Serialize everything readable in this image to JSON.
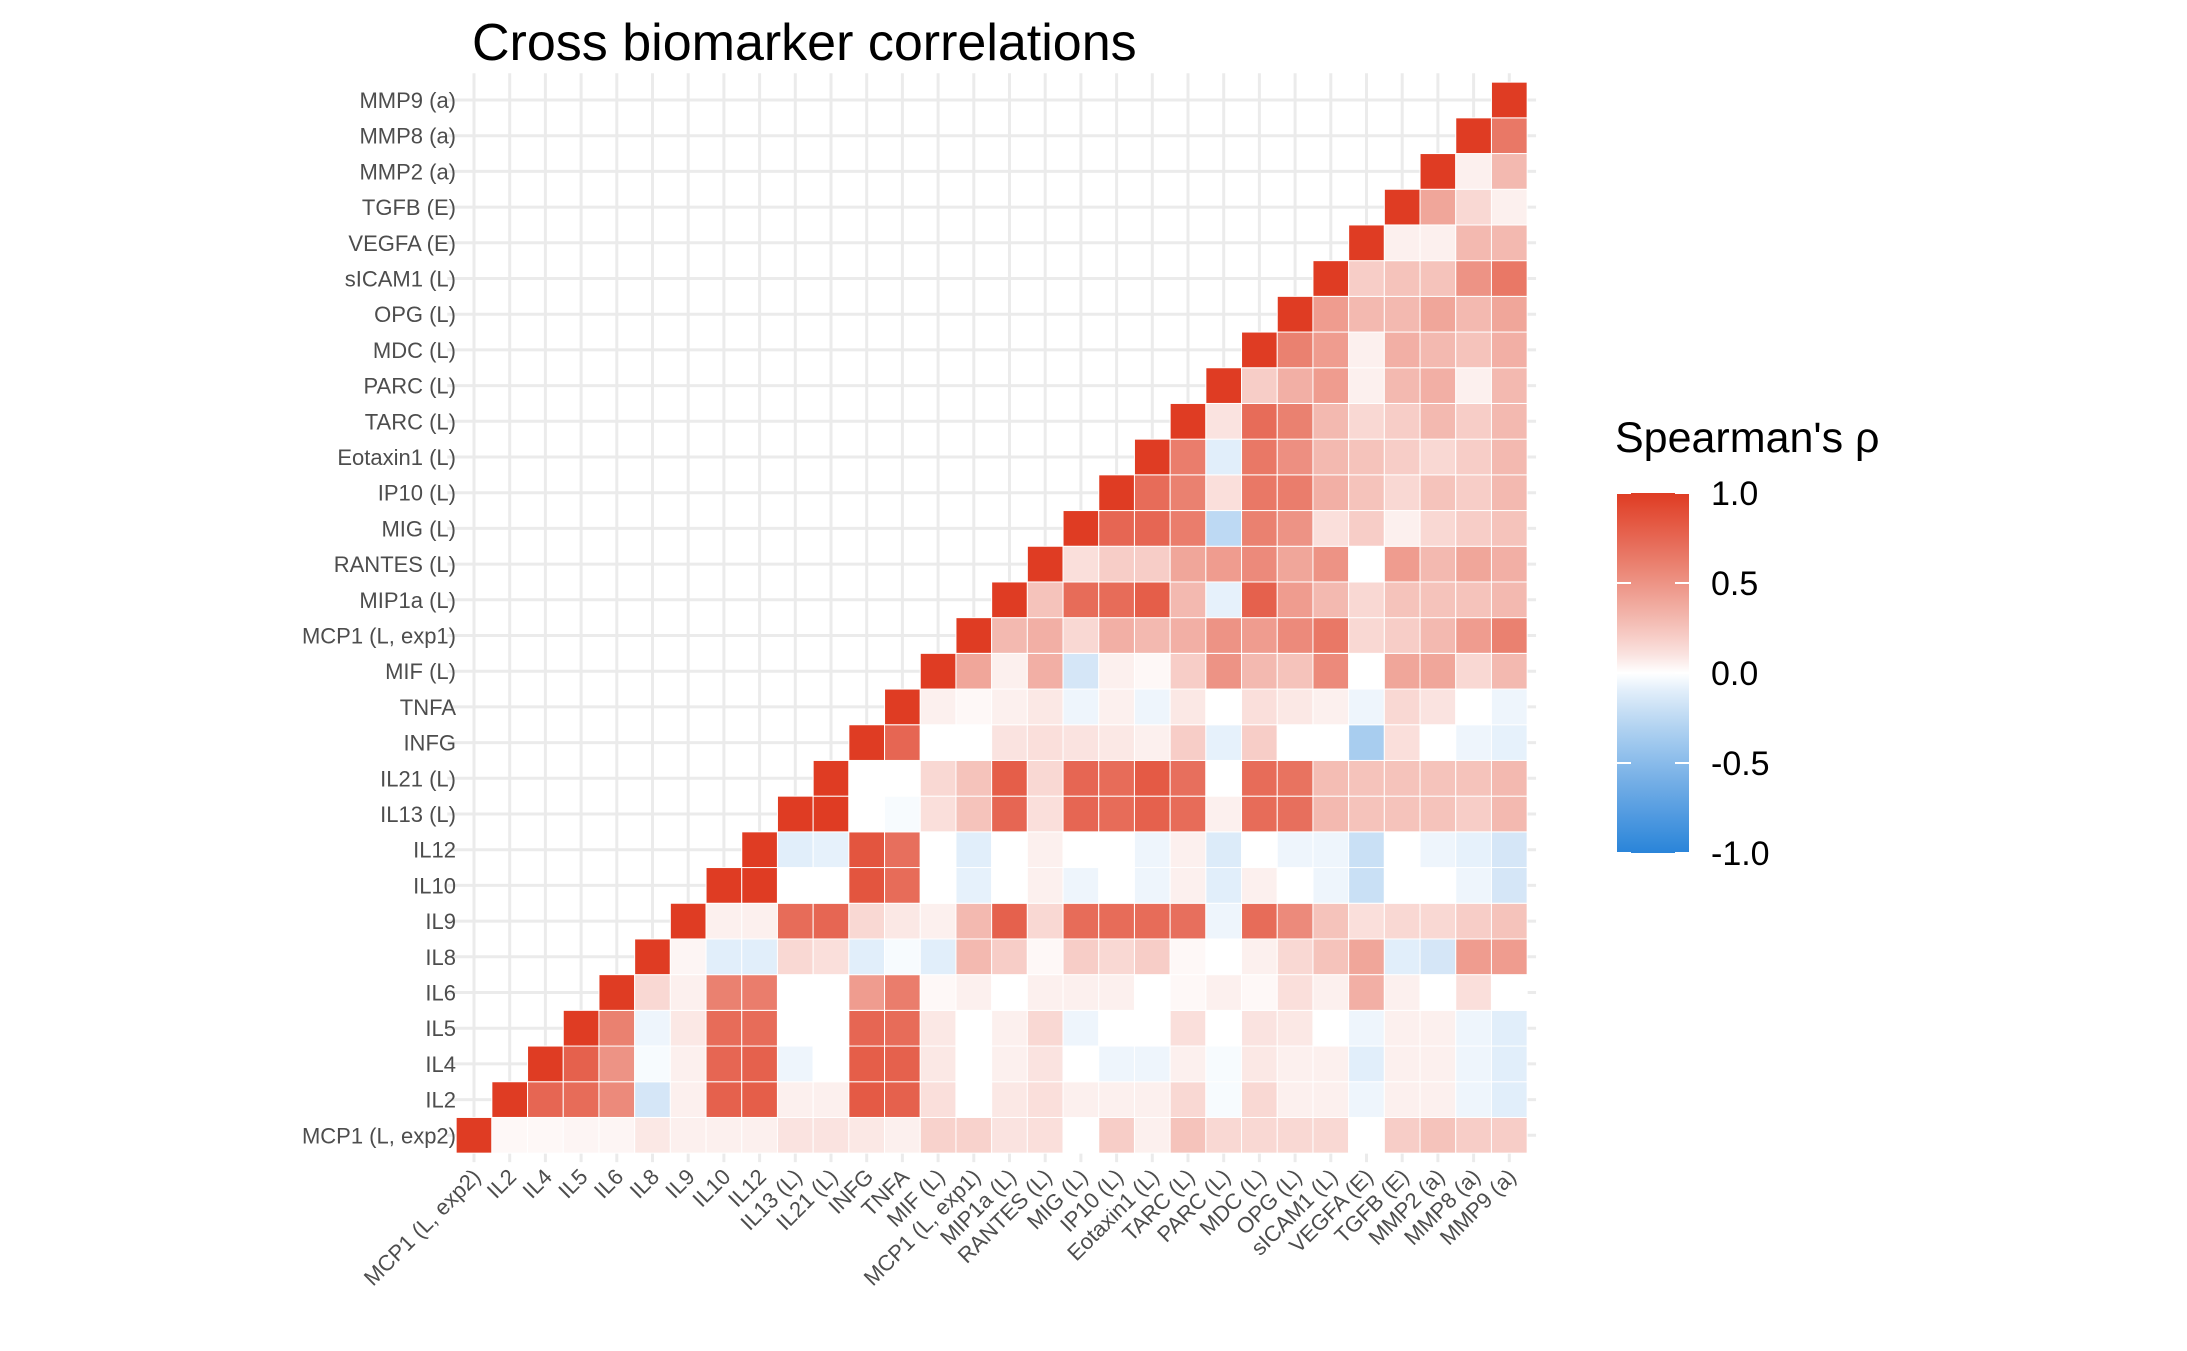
{
  "chart_data": {
    "type": "heatmap",
    "title": "Cross biomarker correlations",
    "variables": [
      "MCP1 (L, exp2)",
      "IL2",
      "IL4",
      "IL5",
      "IL6",
      "IL8",
      "IL9",
      "IL10",
      "IL12",
      "IL13 (L)",
      "IL21 (L)",
      "INFG",
      "TNFA",
      "MIF (L)",
      "MCP1 (L, exp1)",
      "MIP1a (L)",
      "RANTES (L)",
      "MIG (L)",
      "IP10 (L)",
      "Eotaxin1 (L)",
      "TARC (L)",
      "PARC (L)",
      "MDC (L)",
      "OPG (L)",
      "sICAM1 (L)",
      "VEGFA (E)",
      "TGFB (E)",
      "MMP2 (a)",
      "MMP8 (a)",
      "MMP9 (a)"
    ],
    "matrix": [
      [
        1.0
      ],
      [
        0.02,
        1.0
      ],
      [
        0.02,
        0.75,
        1.0
      ],
      [
        0.03,
        0.72,
        0.78,
        1.0
      ],
      [
        0.03,
        0.55,
        0.5,
        0.6,
        1.0
      ],
      [
        0.08,
        -0.15,
        -0.02,
        -0.05,
        0.15,
        1.0
      ],
      [
        0.05,
        0.05,
        0.05,
        0.08,
        0.05,
        0.03,
        1.0
      ],
      [
        0.05,
        0.78,
        0.75,
        0.72,
        0.6,
        -0.1,
        0.05,
        1.0
      ],
      [
        0.05,
        0.8,
        0.78,
        0.72,
        0.62,
        -0.1,
        0.05,
        1.0,
        1.0
      ],
      [
        0.1,
        0.05,
        -0.05,
        0.0,
        0.0,
        0.15,
        0.72,
        0.0,
        -0.1,
        1.0
      ],
      [
        0.1,
        0.05,
        0.0,
        0.0,
        0.0,
        0.12,
        0.75,
        0.0,
        -0.08,
        1.0,
        1.0
      ],
      [
        0.08,
        0.82,
        0.8,
        0.75,
        0.45,
        -0.1,
        0.15,
        0.85,
        0.85,
        0.0,
        0.0,
        1.0
      ],
      [
        0.05,
        0.78,
        0.78,
        0.72,
        0.62,
        -0.02,
        0.08,
        0.72,
        0.7,
        -0.02,
        0.0,
        0.75,
        1.0
      ],
      [
        0.18,
        0.12,
        0.08,
        0.08,
        0.02,
        -0.1,
        0.05,
        0.0,
        0.0,
        0.12,
        0.15,
        0.0,
        0.05,
        1.0
      ],
      [
        0.18,
        0.0,
        0.0,
        0.0,
        0.05,
        0.3,
        0.3,
        -0.08,
        -0.1,
        0.25,
        0.25,
        0.0,
        0.02,
        0.4,
        1.0
      ],
      [
        0.1,
        0.08,
        0.05,
        0.05,
        0.0,
        0.2,
        0.78,
        0.0,
        0.0,
        0.75,
        0.8,
        0.1,
        0.05,
        0.05,
        0.3,
        1.0
      ],
      [
        0.12,
        0.12,
        0.1,
        0.15,
        0.05,
        0.02,
        0.15,
        0.05,
        0.05,
        0.12,
        0.15,
        0.12,
        0.08,
        0.35,
        0.35,
        0.25,
        1.0
      ],
      [
        0.0,
        0.05,
        0.0,
        -0.05,
        0.05,
        0.2,
        0.72,
        -0.05,
        0.0,
        0.75,
        0.75,
        0.1,
        -0.05,
        -0.15,
        0.15,
        0.72,
        0.12,
        1.0
      ],
      [
        0.2,
        0.05,
        -0.05,
        0.0,
        0.05,
        0.15,
        0.72,
        0.0,
        0.0,
        0.72,
        0.72,
        0.08,
        0.05,
        0.05,
        0.35,
        0.72,
        0.2,
        0.75,
        1.0
      ],
      [
        0.05,
        0.05,
        -0.05,
        0.0,
        0.0,
        0.2,
        0.72,
        -0.05,
        -0.05,
        0.78,
        0.82,
        0.05,
        -0.05,
        0.02,
        0.3,
        0.8,
        0.2,
        0.75,
        0.72,
        1.0
      ],
      [
        0.25,
        0.15,
        0.05,
        0.12,
        0.02,
        0.02,
        0.7,
        0.05,
        0.05,
        0.72,
        0.7,
        0.2,
        0.08,
        0.2,
        0.35,
        0.3,
        0.4,
        0.62,
        0.6,
        0.62,
        1.0
      ],
      [
        0.15,
        -0.02,
        -0.02,
        0.0,
        0.05,
        0.0,
        -0.05,
        -0.1,
        -0.12,
        0.05,
        0.0,
        -0.08,
        0.0,
        0.5,
        0.5,
        -0.08,
        0.45,
        -0.25,
        0.12,
        -0.1,
        0.1,
        1.0
      ],
      [
        0.15,
        0.15,
        0.08,
        0.1,
        0.02,
        0.05,
        0.72,
        0.05,
        0.0,
        0.72,
        0.72,
        0.2,
        0.12,
        0.3,
        0.45,
        0.78,
        0.55,
        0.6,
        0.65,
        0.65,
        0.72,
        0.2,
        1.0
      ],
      [
        0.15,
        0.05,
        0.05,
        0.08,
        0.12,
        0.15,
        0.55,
        0.0,
        -0.05,
        0.7,
        0.68,
        0.0,
        0.08,
        0.25,
        0.55,
        0.45,
        0.4,
        0.5,
        0.62,
        0.52,
        0.6,
        0.35,
        0.6,
        1.0
      ],
      [
        0.15,
        0.05,
        0.05,
        0.0,
        0.05,
        0.25,
        0.25,
        -0.05,
        -0.05,
        0.3,
        0.28,
        0.0,
        0.05,
        0.55,
        0.65,
        0.3,
        0.5,
        0.12,
        0.35,
        0.3,
        0.3,
        0.45,
        0.45,
        0.45,
        1.0
      ],
      [
        0.0,
        -0.05,
        -0.1,
        -0.05,
        0.35,
        0.4,
        0.12,
        -0.2,
        -0.2,
        0.25,
        0.25,
        -0.35,
        -0.05,
        0.0,
        0.15,
        0.15,
        0.0,
        0.2,
        0.25,
        0.25,
        0.15,
        0.05,
        0.05,
        0.3,
        0.2,
        1.0
      ],
      [
        0.2,
        0.05,
        0.05,
        0.05,
        0.05,
        -0.1,
        0.15,
        0.0,
        0.0,
        0.25,
        0.25,
        0.12,
        0.15,
        0.4,
        0.2,
        0.25,
        0.45,
        0.05,
        0.15,
        0.2,
        0.2,
        0.3,
        0.35,
        0.3,
        0.25,
        0.05,
        1.0
      ],
      [
        0.25,
        0.05,
        0.05,
        0.05,
        0.0,
        -0.15,
        0.15,
        0.0,
        -0.05,
        0.25,
        0.25,
        0.0,
        0.1,
        0.4,
        0.3,
        0.25,
        0.3,
        0.15,
        0.25,
        0.15,
        0.3,
        0.35,
        0.3,
        0.4,
        0.25,
        0.05,
        0.4,
        1.0
      ],
      [
        0.2,
        -0.05,
        -0.05,
        -0.05,
        0.12,
        0.45,
        0.2,
        -0.05,
        -0.08,
        0.2,
        0.25,
        -0.05,
        0.0,
        0.15,
        0.45,
        0.25,
        0.4,
        0.2,
        0.2,
        0.2,
        0.2,
        0.05,
        0.25,
        0.3,
        0.5,
        0.3,
        0.15,
        0.05,
        1.0
      ],
      [
        0.2,
        -0.1,
        -0.1,
        -0.1,
        0.0,
        0.45,
        0.25,
        -0.15,
        -0.15,
        0.3,
        0.3,
        -0.08,
        -0.05,
        0.3,
        0.6,
        0.3,
        0.35,
        0.25,
        0.3,
        0.3,
        0.3,
        0.3,
        0.35,
        0.4,
        0.65,
        0.3,
        0.05,
        0.3,
        0.65,
        1.0
      ]
    ],
    "legend": {
      "title": "Spearman's ρ",
      "ticks": [
        "1.0",
        "0.5",
        "0.0",
        "-0.5",
        "-1.0"
      ],
      "limits": [
        -1,
        1
      ],
      "position": "right"
    },
    "colors": {
      "low": "#2a84d9",
      "mid": "#ffffff",
      "high": "#df3c23",
      "grid": "#ebebeb",
      "tile_border": "#ffffff"
    },
    "grid": true
  }
}
